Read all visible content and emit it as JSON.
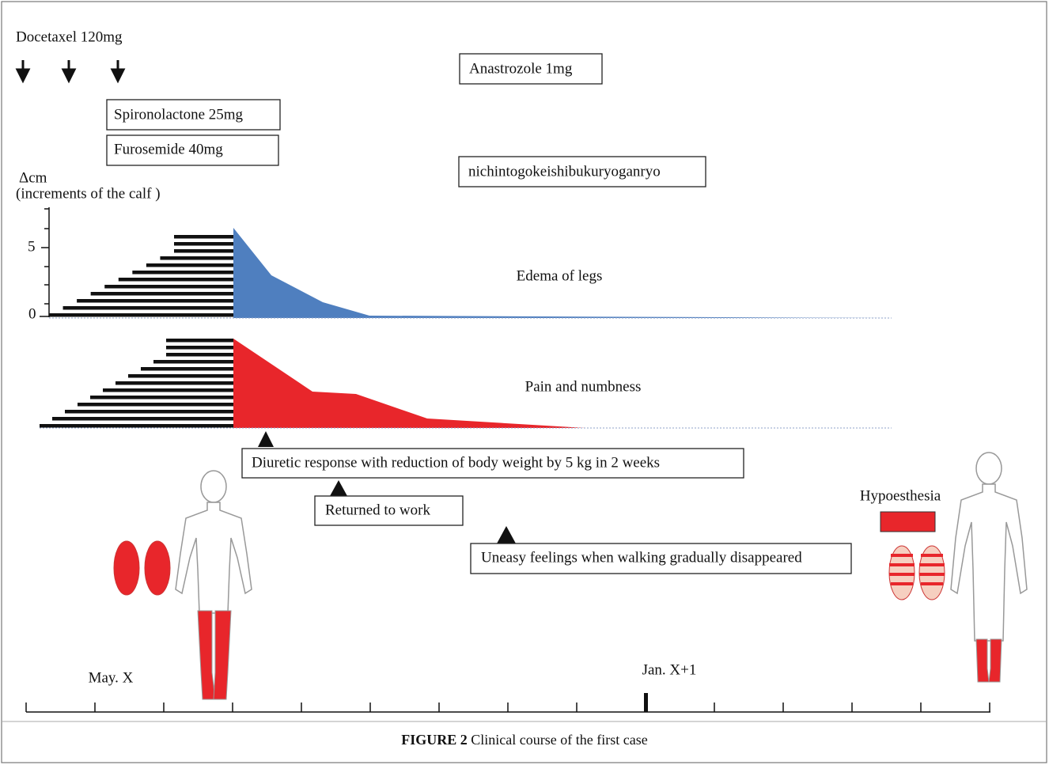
{
  "header": {
    "drug": "Docetaxel 120mg"
  },
  "boxes": [
    "Anastrozole 1mg",
    "Spironolactone 25mg",
    "Furosemide 40mg",
    "nichintogokeishibukuryoganryo"
  ],
  "axis": {
    "unit": "Δcm",
    "description": "(increments of the calf )",
    "ticks": [
      "5",
      "0"
    ]
  },
  "series_labels": [
    "Edema of legs",
    "Pain and numbness"
  ],
  "events": [
    "Diuretic response with reduction of body weight by 5 kg in 2 weeks",
    "Returned to work",
    "Uneasy feelings when walking gradually disappeared"
  ],
  "hypoesthesia": "Hypoesthesia",
  "timeline": {
    "start": "May. X",
    "mark": "Jan. X+1"
  },
  "caption": {
    "label": "FIGURE 2",
    "text": "Clinical course of the first case"
  }
}
